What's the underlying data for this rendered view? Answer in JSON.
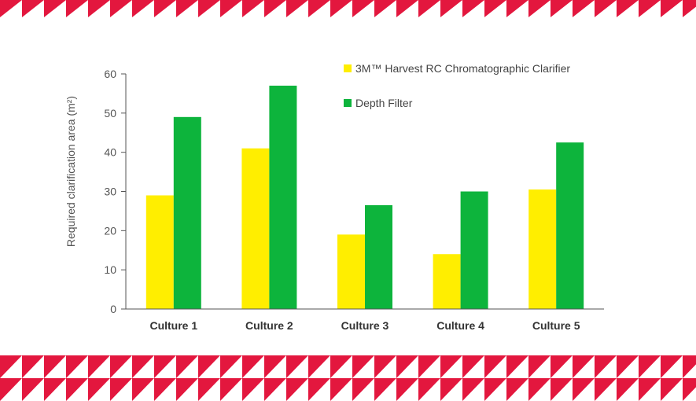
{
  "colors": {
    "band": "#e3173e",
    "background": "#ffffff",
    "axis": "#555555"
  },
  "chart_data": {
    "type": "bar",
    "title": "",
    "xlabel": "",
    "ylabel": "Required clarification area (m²)",
    "categories": [
      "Culture 1",
      "Culture 2",
      "Culture 3",
      "Culture 4",
      "Culture 5"
    ],
    "ylim": [
      0,
      60
    ],
    "yticks": [
      0,
      10,
      20,
      30,
      40,
      50,
      60
    ],
    "grid": false,
    "legend": "top-right",
    "series": [
      {
        "name": "3M™ Harvest RC Chromatographic Clarifier",
        "color": "#ffee00",
        "values": [
          29,
          41,
          19,
          14,
          30.5
        ]
      },
      {
        "name": "Depth Filter",
        "color": "#0db43c",
        "values": [
          49,
          57,
          26.5,
          30,
          42.5
        ]
      }
    ]
  }
}
